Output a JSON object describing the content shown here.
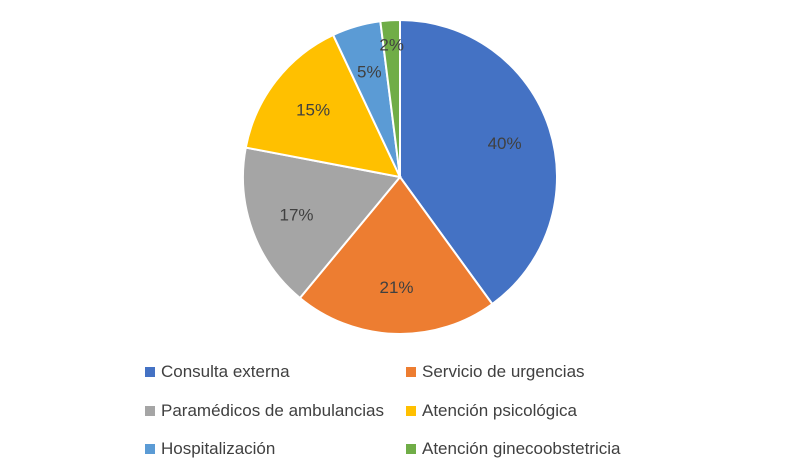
{
  "chart_data": {
    "type": "pie",
    "slices": [
      {
        "label": "Consulta externa",
        "value": 40,
        "display": "40%",
        "color": "#4472C4"
      },
      {
        "label": "Servicio de urgencias",
        "value": 21,
        "display": "21%",
        "color": "#ED7D31"
      },
      {
        "label": "Paramédicos de ambulancias",
        "value": 17,
        "display": "17%",
        "color": "#A5A5A5"
      },
      {
        "label": "Atención psicológica",
        "value": 15,
        "display": "15%",
        "color": "#FFC000"
      },
      {
        "label": "Hospitalización",
        "value": 5,
        "display": "5%",
        "color": "#5B9BD5"
      },
      {
        "label": "Atención ginecoobstetricia",
        "value": 2,
        "display": "2%",
        "color": "#70AD47"
      }
    ],
    "legend_position": "bottom"
  }
}
